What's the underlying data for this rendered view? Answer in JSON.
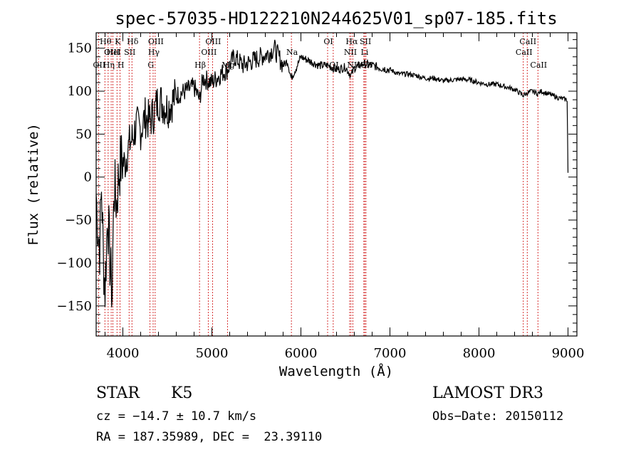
{
  "chart_data": {
    "type": "line",
    "title": "spec-57035-HD122210N244625V01_sp07-185.fits",
    "xlabel": "Wavelength (Å)",
    "ylabel": "Flux (relative)",
    "xlim": [
      3700,
      9100
    ],
    "ylim": [
      -185,
      168
    ],
    "xticks": [
      4000,
      5000,
      6000,
      7000,
      8000,
      9000
    ],
    "yticks": [
      -150,
      -100,
      -50,
      0,
      50,
      100,
      150
    ],
    "series": [
      {
        "name": "flux",
        "x": [
          3700,
          3720,
          3740,
          3760,
          3780,
          3800,
          3830,
          3860,
          3880,
          3900,
          3930,
          3960,
          3990,
          4020,
          4050,
          4080,
          4110,
          4150,
          4200,
          4250,
          4300,
          4350,
          4400,
          4450,
          4500,
          4600,
          4700,
          4800,
          4861,
          4900,
          5000,
          5100,
          5175,
          5250,
          5350,
          5450,
          5550,
          5650,
          5700,
          5750,
          5800,
          5850,
          5890,
          5950,
          6000,
          6100,
          6200,
          6300,
          6400,
          6500,
          6563,
          6600,
          6700,
          6800,
          6900,
          7000,
          7100,
          7200,
          7300,
          7400,
          7500,
          7600,
          7700,
          7800,
          7900,
          8000,
          8100,
          8200,
          8300,
          8400,
          8498,
          8542,
          8600,
          8662,
          8700,
          8800,
          8900,
          8990,
          9000
        ],
        "values": [
          -20,
          -60,
          -80,
          -10,
          -90,
          -130,
          -40,
          -110,
          -135,
          -10,
          -30,
          10,
          20,
          15,
          30,
          40,
          45,
          60,
          55,
          70,
          65,
          75,
          90,
          85,
          80,
          95,
          100,
          105,
          90,
          115,
          110,
          120,
          125,
          140,
          130,
          135,
          140,
          145,
          150,
          140,
          130,
          135,
          115,
          128,
          140,
          135,
          130,
          130,
          125,
          128,
          118,
          127,
          132,
          130,
          127,
          125,
          120,
          120,
          118,
          115,
          115,
          112,
          113,
          114,
          113,
          110,
          108,
          108,
          105,
          102,
          95,
          98,
          100,
          97,
          100,
          96,
          92,
          90,
          5
        ]
      }
    ],
    "lines": [
      {
        "name": "Hθ",
        "x": 3798,
        "row": 0
      },
      {
        "name": "Hη",
        "x": 3835,
        "row": 2
      },
      {
        "name": "OII",
        "x": 3727,
        "row": 2
      },
      {
        "name": "OIII",
        "x": 3869,
        "row": 1
      },
      {
        "name": "K",
        "x": 3934,
        "row": 0
      },
      {
        "name": "HeI",
        "x": 3889,
        "row": 1
      },
      {
        "name": "H",
        "x": 3969,
        "row": 2
      },
      {
        "name": "SII",
        "x": 4070,
        "row": 1
      },
      {
        "name": "Hδ",
        "x": 4102,
        "row": 0
      },
      {
        "name": "G",
        "x": 4305,
        "row": 2
      },
      {
        "name": "Hγ",
        "x": 4340,
        "row": 1
      },
      {
        "name": "OIII",
        "x": 4363,
        "row": 0
      },
      {
        "name": "Hβ",
        "x": 4861,
        "row": 2
      },
      {
        "name": "OIII",
        "x": 4959,
        "row": 1
      },
      {
        "name": "OIII",
        "x": 5007,
        "row": 0
      },
      {
        "name": "Mg",
        "x": 5175,
        "row": 2
      },
      {
        "name": "Na",
        "x": 5893,
        "row": 1
      },
      {
        "name": "OI",
        "x": 6300,
        "row": 0
      },
      {
        "name": "OI",
        "x": 6363,
        "row": 2
      },
      {
        "name": "NII",
        "x": 6548,
        "row": 1
      },
      {
        "name": "Hα",
        "x": 6563,
        "row": 0
      },
      {
        "name": "NII",
        "x": 6583,
        "row": 2
      },
      {
        "name": "SII",
        "x": 6717,
        "row": 0
      },
      {
        "name": "Li",
        "x": 6707,
        "row": 1
      },
      {
        "name": "SII",
        "x": 6731,
        "row": 2
      },
      {
        "name": "CaII",
        "x": 8498,
        "row": 1
      },
      {
        "name": "CaII",
        "x": 8542,
        "row": 0
      },
      {
        "name": "CaII",
        "x": 8662,
        "row": 2
      }
    ]
  },
  "info": {
    "object_class": "STAR",
    "subclass": "K5",
    "survey": "LAMOST DR3",
    "cz": "cz = −14.7 ± 10.7 km/s",
    "obs_date": "Obs−Date: 20150112",
    "coords": "RA = 187.35989, DEC =  23.39110"
  },
  "colors": {
    "line": "#000000",
    "marker": "#cc0000"
  }
}
